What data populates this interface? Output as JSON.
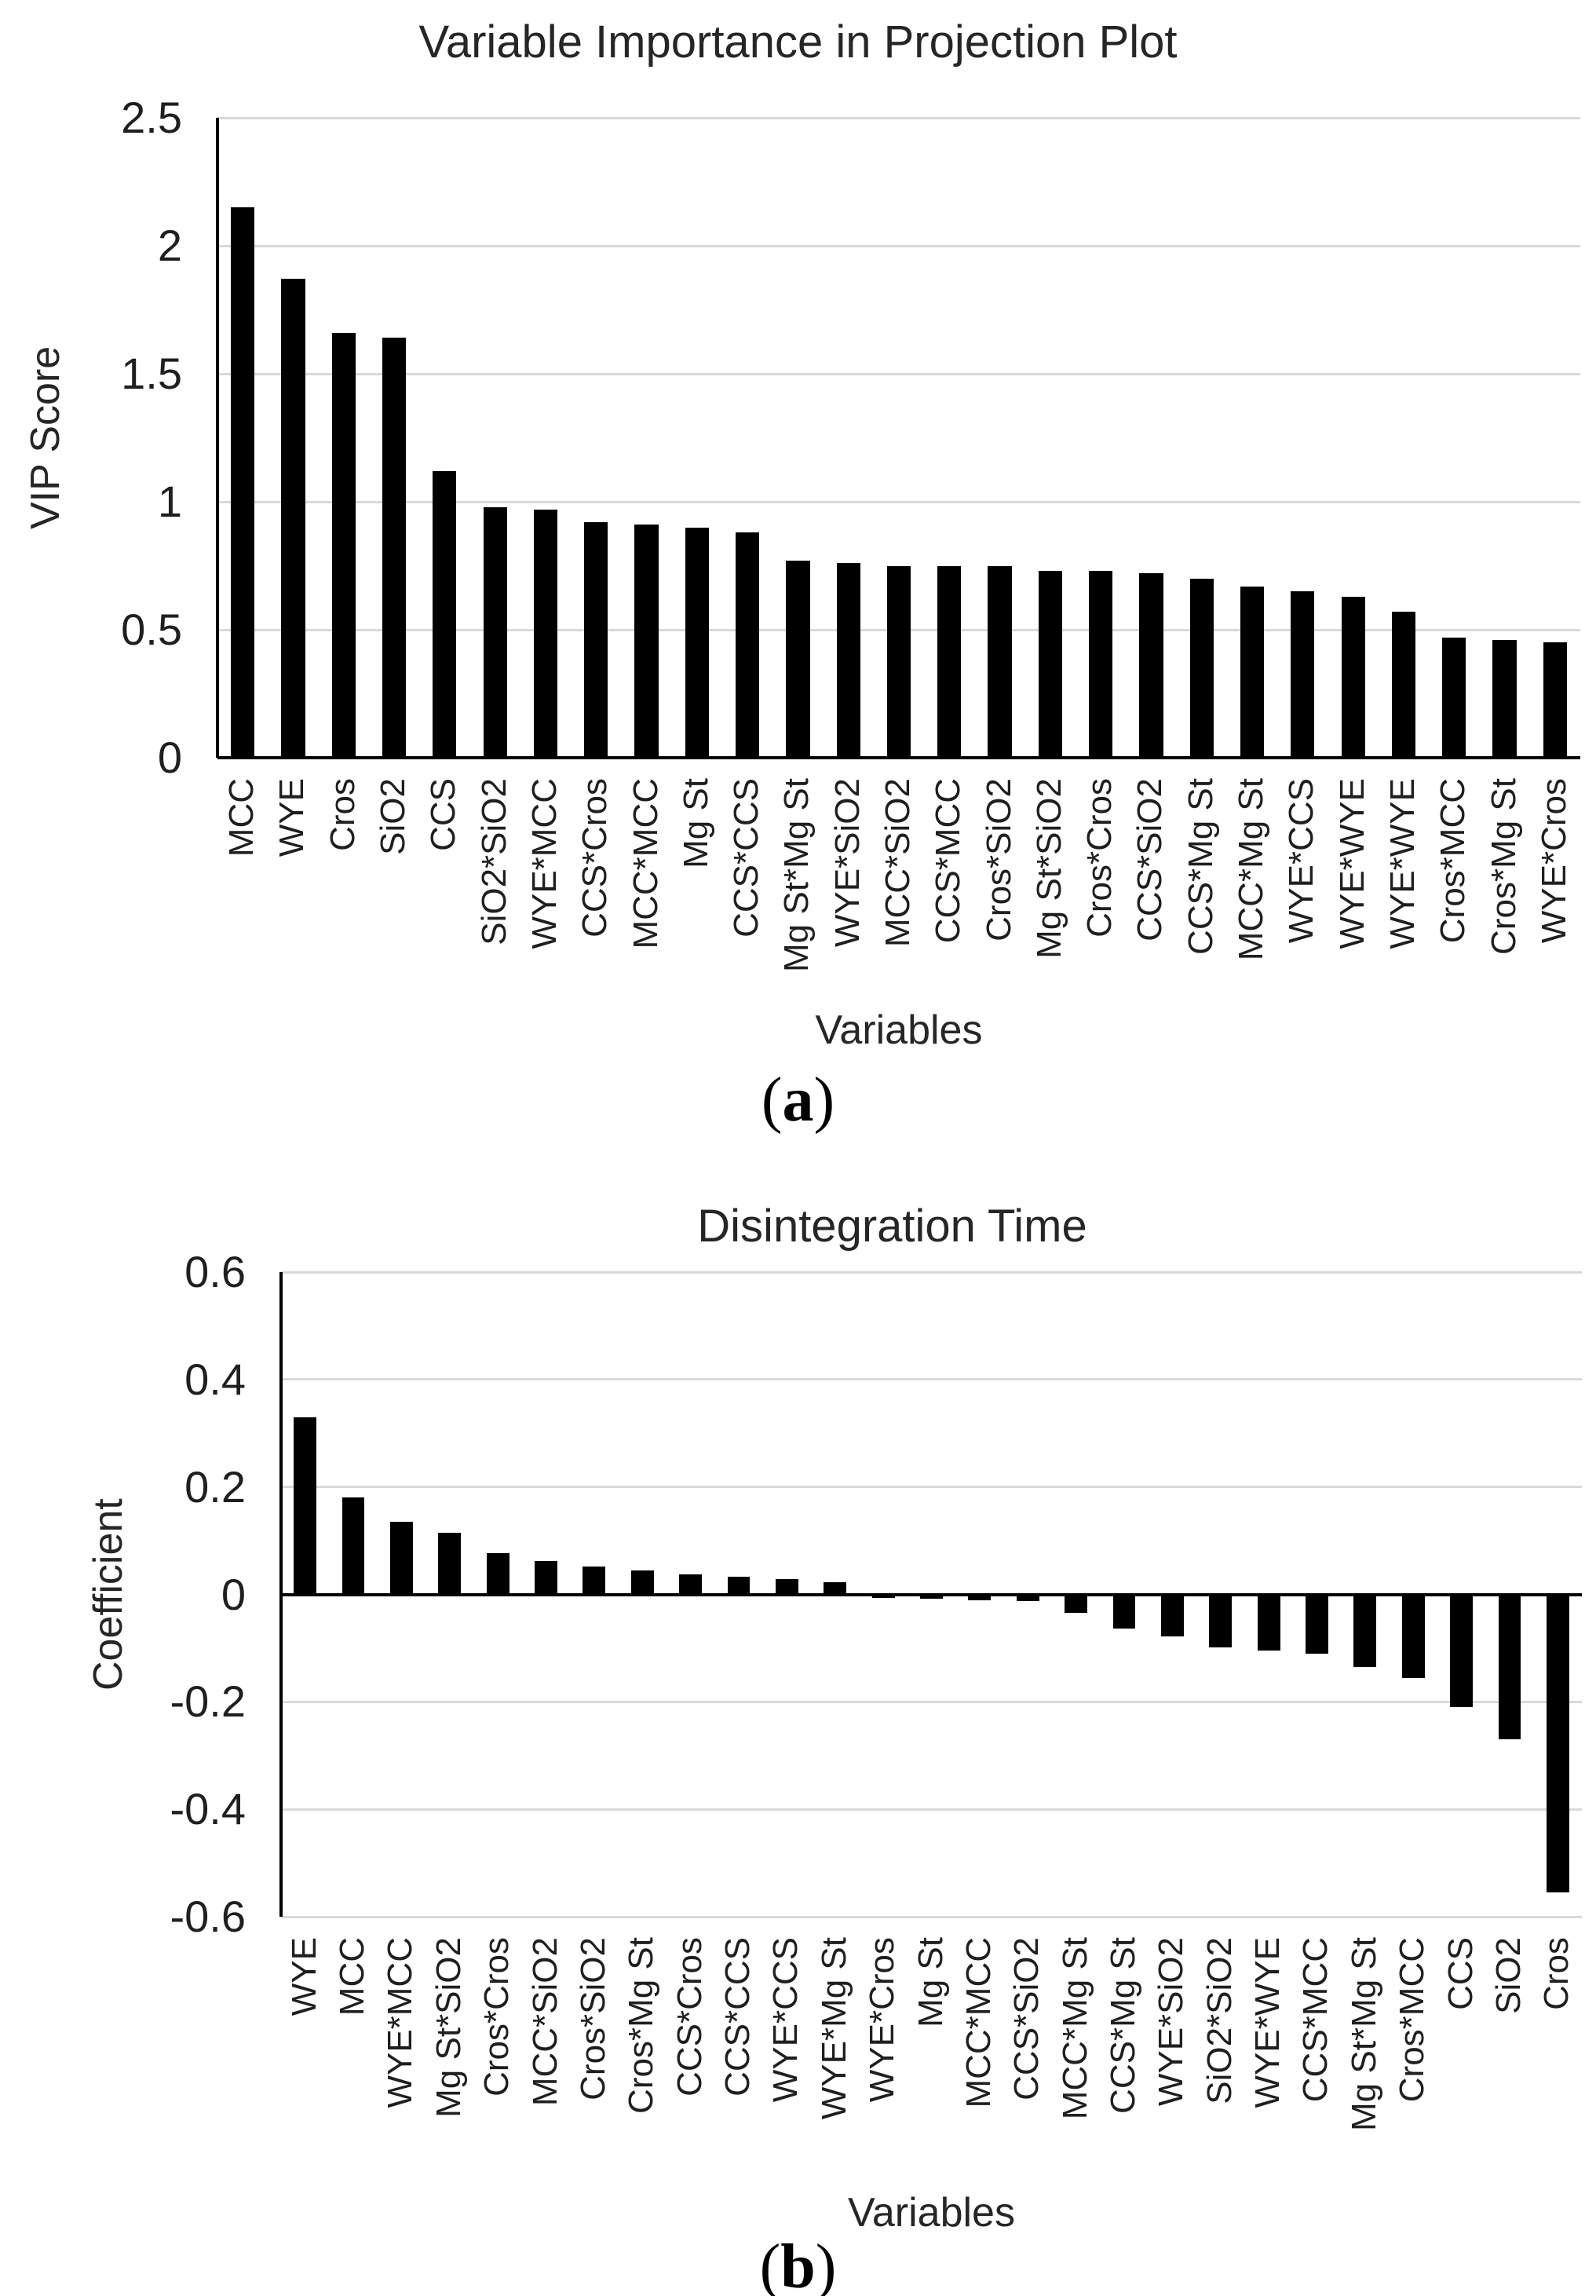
{
  "figure": {
    "background": "#ffffff"
  },
  "colors": {
    "bar": "#000000",
    "axis": "#000000",
    "gridline": "#d9d9d9",
    "text": "#262626"
  },
  "captions": {
    "a": {
      "open": "(",
      "letter": "a",
      "close": ")"
    },
    "b": {
      "open": "(",
      "letter": "b",
      "close": ")"
    }
  },
  "chart_data": [
    {
      "type": "bar",
      "title": "Variable Importance in Projection Plot",
      "xlabel": "Variables",
      "ylabel": "VIP Score",
      "ylim": [
        0,
        2.5
      ],
      "yticks": [
        0,
        0.5,
        1,
        1.5,
        2,
        2.5
      ],
      "grid": true,
      "legend": "none",
      "bar_color": "#000000",
      "categories": [
        "MCC",
        "WYE",
        "Cros",
        "SiO2",
        "CCS",
        "SiO2*SiO2",
        "WYE*MCC",
        "CCS*Cros",
        "MCC*MCC",
        "Mg St",
        "CCS*CCS",
        "Mg St*Mg St",
        "WYE*SiO2",
        "MCC*SiO2",
        "CCS*MCC",
        "Cros*SiO2",
        "Mg St*SiO2",
        "Cros*Cros",
        "CCS*SiO2",
        "CCS*Mg St",
        "MCC*Mg St",
        "WYE*CCS",
        "WYE*WYE",
        "WYE*WYE",
        "Cros*MCC",
        "Cros*Mg St",
        "WYE*Cros"
      ],
      "values": [
        2.15,
        1.87,
        1.66,
        1.64,
        1.12,
        0.98,
        0.97,
        0.92,
        0.91,
        0.9,
        0.88,
        0.77,
        0.76,
        0.75,
        0.75,
        0.75,
        0.73,
        0.73,
        0.72,
        0.7,
        0.67,
        0.65,
        0.63,
        0.57,
        0.47,
        0.46,
        0.45
      ]
    },
    {
      "type": "bar",
      "title": "Disintegration Time",
      "xlabel": "Variables",
      "ylabel": "Coefficient",
      "ylim": [
        -0.6,
        0.6
      ],
      "yticks": [
        -0.6,
        -0.4,
        -0.2,
        0,
        0.2,
        0.4,
        0.6
      ],
      "grid": true,
      "legend": "none",
      "bar_color": "#000000",
      "categories": [
        "WYE",
        "MCC",
        "WYE*MCC",
        "Mg St*SiO2",
        "Cros*Cros",
        "MCC*SiO2",
        "Cros*SiO2",
        "Cros*Mg St",
        "CCS*Cros",
        "CCS*CCS",
        "WYE*CCS",
        "WYE*Mg St",
        "WYE*Cros",
        "Mg St",
        "MCC*MCC",
        "CCS*SiO2",
        "MCC*Mg St",
        "CCS*Mg St",
        "WYE*SiO2",
        "SiO2*SiO2",
        "WYE*WYE",
        "CCS*MCC",
        "Mg St*Mg St",
        "Cros*MCC",
        "CCS",
        "SiO2",
        "Cros"
      ],
      "values": [
        0.33,
        0.18,
        0.135,
        0.115,
        0.077,
        0.062,
        0.052,
        0.045,
        0.038,
        0.033,
        0.028,
        0.022,
        -0.006,
        -0.008,
        -0.011,
        -0.013,
        -0.035,
        -0.063,
        -0.078,
        -0.098,
        -0.105,
        -0.11,
        -0.135,
        -0.155,
        -0.21,
        -0.27,
        -0.555
      ]
    }
  ]
}
